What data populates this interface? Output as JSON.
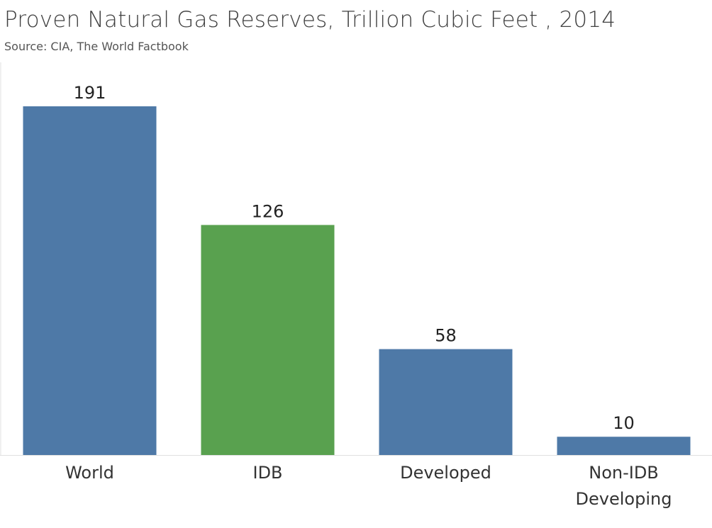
{
  "header": {
    "title": "Proven Natural Gas Reserves, Trillion Cubic Feet , 2014",
    "subtitle": "Source: CIA, The World Factbook"
  },
  "colors": {
    "default_bar": "#4e79a7",
    "highlight_bar": "#59a14f",
    "axis": "#e0e0e0"
  },
  "chart_data": {
    "type": "bar",
    "title": "Proven Natural Gas Reserves, Trillion Cubic Feet , 2014",
    "subtitle": "Source: CIA, The World Factbook",
    "xlabel": "",
    "ylabel": "",
    "ylim": [
      0,
      191
    ],
    "grid": false,
    "categories": [
      {
        "label_lines": [
          "World"
        ],
        "value": 191,
        "value_label": "191",
        "color": "#4e79a7"
      },
      {
        "label_lines": [
          "IDB"
        ],
        "value": 126,
        "value_label": "126",
        "color": "#59a14f"
      },
      {
        "label_lines": [
          "Developed"
        ],
        "value": 58,
        "value_label": "58",
        "color": "#4e79a7"
      },
      {
        "label_lines": [
          "Non-IDB",
          "Developing"
        ],
        "value": 10,
        "value_label": "10",
        "color": "#4e79a7"
      }
    ]
  }
}
